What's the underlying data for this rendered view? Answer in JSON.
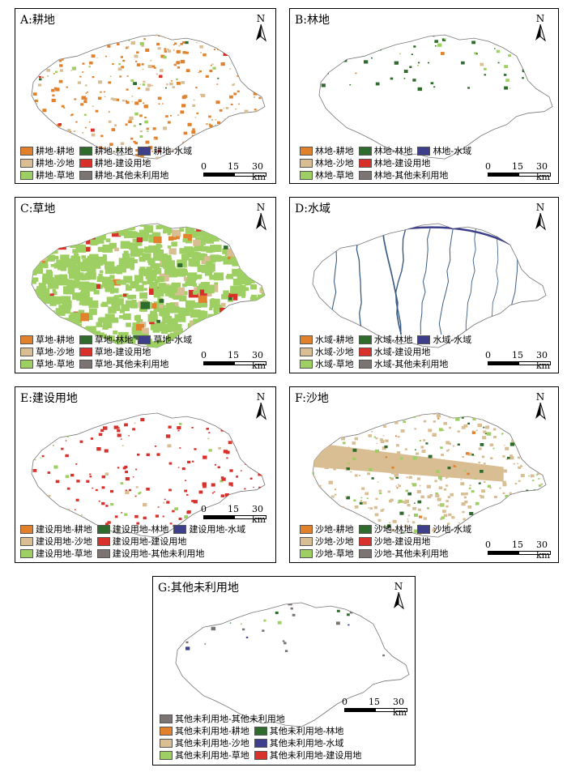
{
  "colors": {
    "cropland": "#e2812c",
    "forest": "#2e6b2c",
    "water": "#3d3f8a",
    "sand": "#d8be92",
    "construction": "#d8302b",
    "grass": "#9ecf63",
    "other": "#7b7472"
  },
  "north_label": "N",
  "scale": {
    "t0": "0",
    "t1": "15",
    "t2": "30 km"
  },
  "panels": [
    {
      "title": "A:耕地",
      "legend": [
        [
          "耕地-耕地",
          "耕地-林地",
          "耕地-水域"
        ],
        [
          "耕地-沙地",
          "耕地-建设用地"
        ],
        [
          "耕地-草地",
          "耕地-其他未利用地"
        ]
      ]
    },
    {
      "title": "B:林地",
      "legend": [
        [
          "林地-耕地",
          "林地-林地",
          "林地-水域"
        ],
        [
          "林地-沙地",
          "林地-建设用地"
        ],
        [
          "林地-草地",
          "林地-其他未利用地"
        ]
      ]
    },
    {
      "title": "C:草地",
      "legend": [
        [
          "草地-耕地",
          "草地-林地",
          "草地-水域"
        ],
        [
          "草地-沙地",
          "草地-建设用地"
        ],
        [
          "草地-草地",
          "草地-其他未利用地"
        ]
      ]
    },
    {
      "title": "D:水域",
      "legend": [
        [
          "水域-耕地",
          "水域-林地",
          "水域-水域"
        ],
        [
          "水域-沙地",
          "水域-建设用地"
        ],
        [
          "水域-草地",
          "水域-其他未利用地"
        ]
      ]
    },
    {
      "title": "E:建设用地",
      "legend": [
        [
          "建设用地-耕地",
          "建设用地-林地",
          "建设用地-水域"
        ],
        [
          "建设用地-沙地",
          "建设用地-建设用地"
        ],
        [
          "建设用地-草地",
          "建设用地-其他未利用地"
        ]
      ]
    },
    {
      "title": "F:沙地",
      "legend": [
        [
          "沙地-耕地",
          "沙地-林地",
          "沙地-水域"
        ],
        [
          "沙地-沙地",
          "沙地-建设用地"
        ],
        [
          "沙地-草地",
          "沙地-其他未利用地"
        ]
      ]
    },
    {
      "title": "G:其他未利用地",
      "legend": [
        [
          "其他未利用地-其他未利用地"
        ],
        [
          "其他未利用地-耕地",
          "其他未利用地-林地"
        ],
        [
          "其他未利用地-沙地",
          "其他未利用地-水域"
        ],
        [
          "其他未利用地-草地",
          "其他未利用地-建设用地"
        ]
      ]
    }
  ]
}
